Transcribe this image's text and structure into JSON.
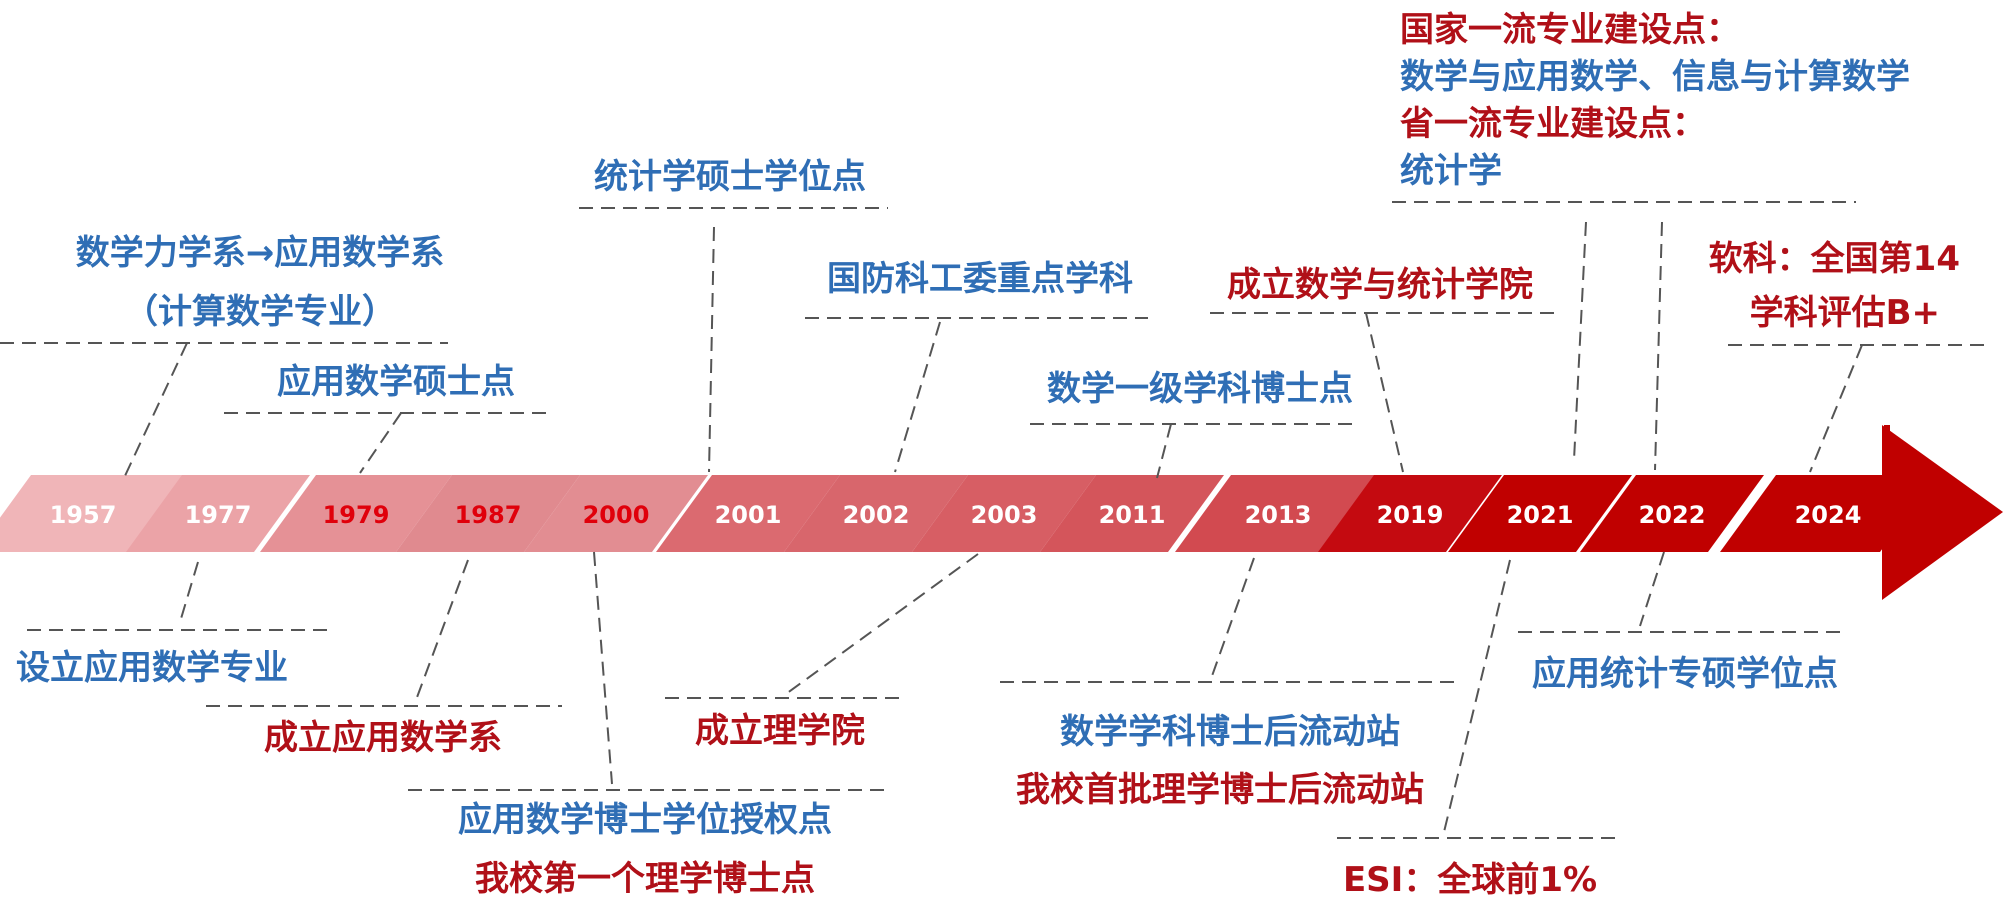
{
  "colors": {
    "blue": "#2F6EB5",
    "red": "#B01018",
    "bright_red": "#E0000B",
    "arrow_dark": "#C00000"
  },
  "years": [
    {
      "label": "1957",
      "highlight": false
    },
    {
      "label": "1977",
      "highlight": false
    },
    {
      "label": "1979",
      "highlight": true
    },
    {
      "label": "1987",
      "highlight": true
    },
    {
      "label": "2000",
      "highlight": true
    },
    {
      "label": "2001",
      "highlight": false
    },
    {
      "label": "2002",
      "highlight": false
    },
    {
      "label": "2003",
      "highlight": false
    },
    {
      "label": "2011",
      "highlight": false
    },
    {
      "label": "2013",
      "highlight": false
    },
    {
      "label": "2019",
      "highlight": false
    },
    {
      "label": "2021",
      "highlight": false
    },
    {
      "label": "2022",
      "highlight": false
    },
    {
      "label": "2024",
      "highlight": false
    }
  ],
  "events": {
    "e1957_line1": "数学力学系→应用数学系",
    "e1957_line2": "（计算数学专业）",
    "e1979": "应用数学硕士点",
    "e2001": "统计学硕士学位点",
    "e2002": "国防科工委重点学科",
    "e2011": "数学一级学科博士点",
    "e2019": "成立数学与统计学院",
    "e2021_line1": "国家一流专业建设点：",
    "e2021_line2": "数学与应用数学、信息与计算数学",
    "e2021_line3": "省一流专业建设点：",
    "e2021_line4": "统计学",
    "e2024_line1": "软科：全国第14",
    "e2024_line2": "学科评估B+",
    "e1977": "设立应用数学专业",
    "e1987": "成立应用数学系",
    "e2000_line1": "应用数学博士学位授权点",
    "e2000_line2": "我校第一个理学博士点",
    "e2003": "成立理学院",
    "e2013_line1": "数学学科博士后流动站",
    "e2013_line2": "我校首批理学博士后流动站",
    "e2021b": "ESI：全球前1%",
    "e2022": "应用统计专硕学位点"
  }
}
